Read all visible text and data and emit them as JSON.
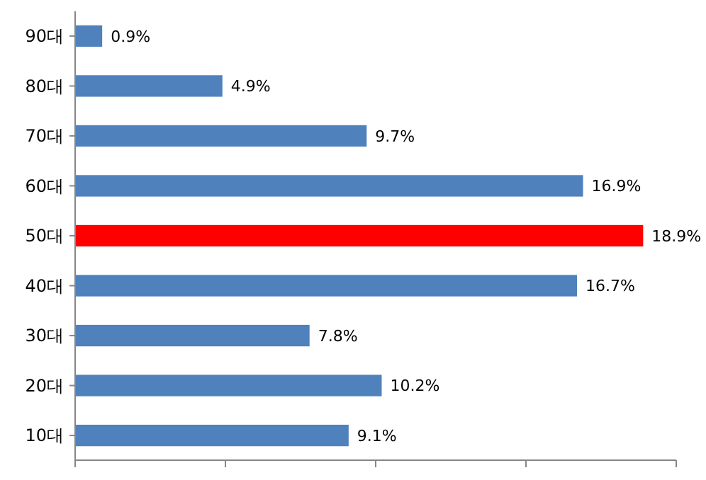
{
  "chart_data": {
    "type": "bar",
    "orientation": "horizontal",
    "categories": [
      "90대",
      "80대",
      "70대",
      "60대",
      "50대",
      "40대",
      "30대",
      "20대",
      "10대"
    ],
    "values": [
      0.9,
      4.9,
      9.7,
      16.9,
      18.9,
      16.7,
      7.8,
      10.2,
      9.1
    ],
    "colors": [
      "#4f81bd",
      "#4f81bd",
      "#4f81bd",
      "#4f81bd",
      "#ff0000",
      "#4f81bd",
      "#4f81bd",
      "#4f81bd",
      "#4f81bd"
    ],
    "value_labels": [
      "0.9%",
      "4.9%",
      "9.7%",
      "16.9%",
      "18.9%",
      "16.7%",
      "7.8%",
      "10.2%",
      "9.1%"
    ],
    "xlim": [
      0,
      20
    ],
    "xticks": [
      {
        "value": 0,
        "label": null
      },
      {
        "value": 5,
        "label": null
      },
      {
        "value": 10,
        "label": null
      },
      {
        "value": 15,
        "label": null
      },
      {
        "value": 20,
        "label": null
      }
    ],
    "grid": false
  }
}
